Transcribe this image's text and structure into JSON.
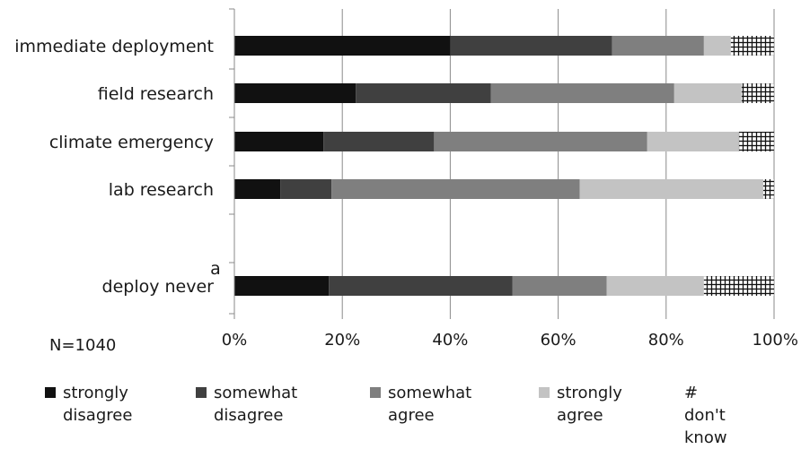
{
  "chart_data": {
    "type": "bar",
    "orientation": "horizontal",
    "stacked": true,
    "normalized": true,
    "categories": [
      "immediate deployment",
      "field research",
      "climate emergency",
      "lab research",
      "deploy never"
    ],
    "category_superscripts": {
      "deploy never": "a"
    },
    "series": [
      {
        "name": "strongly disagree",
        "legend_label": "strongly\ndisagree",
        "color": "#111111",
        "values": [
          40,
          22.5,
          16.5,
          8.5,
          17.5
        ]
      },
      {
        "name": "somewhat disagree",
        "legend_label": "somewhat\ndisagree",
        "color": "#404040",
        "values": [
          30,
          25,
          20.5,
          9.5,
          34
        ]
      },
      {
        "name": "somewhat agree",
        "legend_label": "somewhat\nagree",
        "color": "#7f7f7f",
        "values": [
          17,
          34,
          39.5,
          46,
          17.5
        ]
      },
      {
        "name": "strongly agree",
        "legend_label": "strongly\nagree",
        "color": "#c3c3c3",
        "values": [
          5,
          12.5,
          17,
          34,
          18
        ]
      },
      {
        "name": "don't know",
        "legend_label": "don't\nknow",
        "color": "hatch",
        "values": [
          8,
          6,
          6.5,
          2,
          13
        ]
      }
    ],
    "xlim": [
      0,
      100
    ],
    "x_ticks": [
      "0%",
      "20%",
      "40%",
      "60%",
      "80%",
      "100%"
    ],
    "grid": true,
    "legend_position": "bottom",
    "annotation": "N=1040"
  }
}
